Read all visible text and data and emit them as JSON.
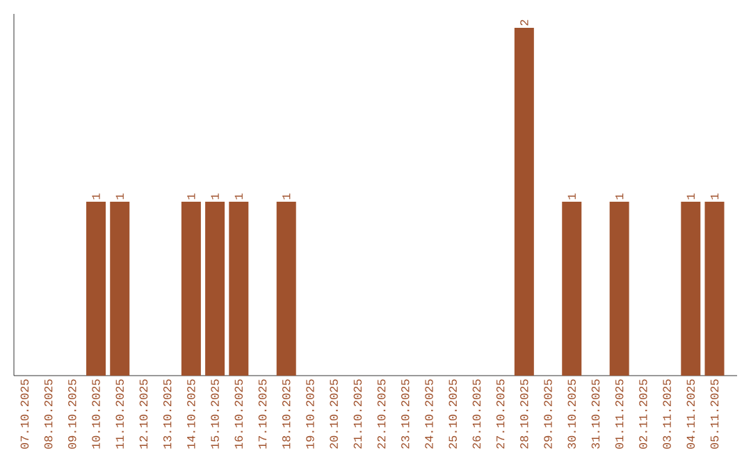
{
  "chart_data": {
    "type": "bar",
    "categories": [
      "07.10.2025",
      "08.10.2025",
      "09.10.2025",
      "10.10.2025",
      "11.10.2025",
      "12.10.2025",
      "13.10.2025",
      "14.10.2025",
      "15.10.2025",
      "16.10.2025",
      "17.10.2025",
      "18.10.2025",
      "19.10.2025",
      "20.10.2025",
      "21.10.2025",
      "22.10.2025",
      "23.10.2025",
      "24.10.2025",
      "25.10.2025",
      "26.10.2025",
      "27.10.2025",
      "28.10.2025",
      "29.10.2025",
      "30.10.2025",
      "31.10.2025",
      "01.11.2025",
      "02.11.2025",
      "03.11.2025",
      "04.11.2025",
      "05.11.2025"
    ],
    "values": [
      0,
      0,
      0,
      1,
      1,
      0,
      0,
      1,
      1,
      1,
      0,
      1,
      0,
      0,
      0,
      0,
      0,
      0,
      0,
      0,
      0,
      2,
      0,
      1,
      0,
      1,
      0,
      0,
      1,
      1
    ],
    "value_labels": [
      null,
      null,
      null,
      "1",
      "1",
      null,
      null,
      "1",
      "1",
      "1",
      null,
      "1",
      null,
      null,
      null,
      null,
      null,
      null,
      null,
      null,
      null,
      "2",
      null,
      "1",
      null,
      "1",
      null,
      null,
      "1",
      "1"
    ],
    "color": "#a0522d",
    "ylim": [
      0,
      2.08
    ],
    "tick_labels": "x",
    "grid": false
  }
}
